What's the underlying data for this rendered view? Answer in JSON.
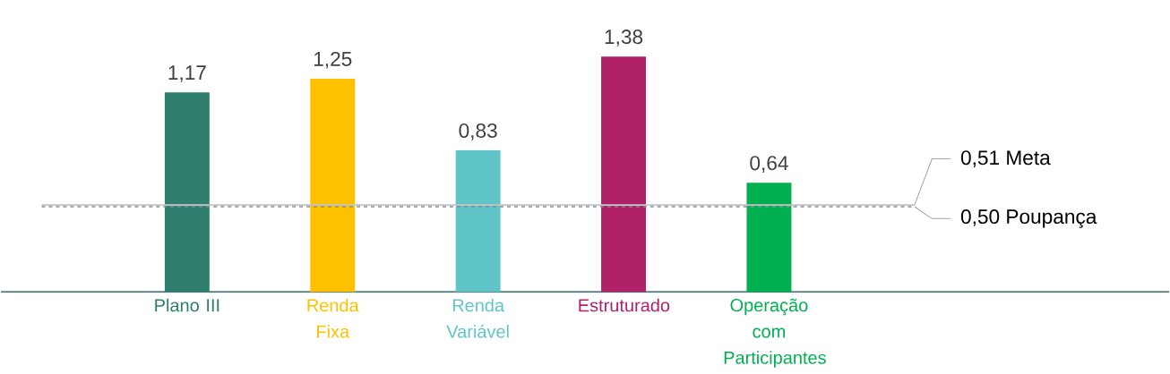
{
  "chart_data": {
    "type": "bar",
    "categories": [
      "Plano III",
      "Renda Fixa",
      "Renda Variável",
      "Estruturado",
      "Operação com Participantes"
    ],
    "values": [
      1.17,
      1.25,
      0.83,
      1.38,
      0.64
    ],
    "value_labels": [
      "1,17",
      "1,25",
      "0,83",
      "1,38",
      "0,64"
    ],
    "colors": [
      "#2f7d6c",
      "#ffc000",
      "#60c5c8",
      "#b0216a",
      "#00b050"
    ],
    "ref_lines": [
      {
        "axis": "y",
        "value": 0.51,
        "label": "0,51 Meta",
        "color": "#c4c4c4",
        "line_style": "solid"
      },
      {
        "axis": "y",
        "value": 0.5,
        "label": "0,50 Poupança",
        "color": "#7f8f9f",
        "line_style": "dashed"
      }
    ]
  }
}
